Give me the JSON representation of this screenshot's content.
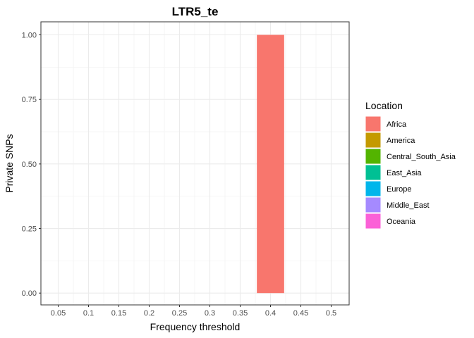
{
  "chart_data": {
    "type": "bar",
    "title": "LTR5_te",
    "xlabel": "Frequency threshold",
    "ylabel": "Private SNPs",
    "x_categories": [
      "0.05",
      "0.1",
      "0.15",
      "0.2",
      "0.25",
      "0.3",
      "0.35",
      "0.4",
      "0.45",
      "0.5"
    ],
    "y_ticks": [
      "0.00",
      "0.25",
      "0.50",
      "0.75",
      "1.00"
    ],
    "ylim": [
      0,
      1
    ],
    "grid": true,
    "legend": {
      "title": "Location",
      "position": "right",
      "entries": [
        {
          "name": "Africa",
          "color": "#F8766D"
        },
        {
          "name": "America",
          "color": "#C49A00"
        },
        {
          "name": "Central_South_Asia",
          "color": "#53B400"
        },
        {
          "name": "East_Asia",
          "color": "#00C094"
        },
        {
          "name": "Europe",
          "color": "#00B6EB"
        },
        {
          "name": "Middle_East",
          "color": "#A58AFF"
        },
        {
          "name": "Oceania",
          "color": "#FB61D7"
        }
      ]
    },
    "series": [
      {
        "name": "Africa",
        "color": "#F8766D",
        "values": [
          0,
          0,
          0,
          0,
          0,
          0,
          0,
          1,
          0,
          0
        ]
      }
    ]
  }
}
